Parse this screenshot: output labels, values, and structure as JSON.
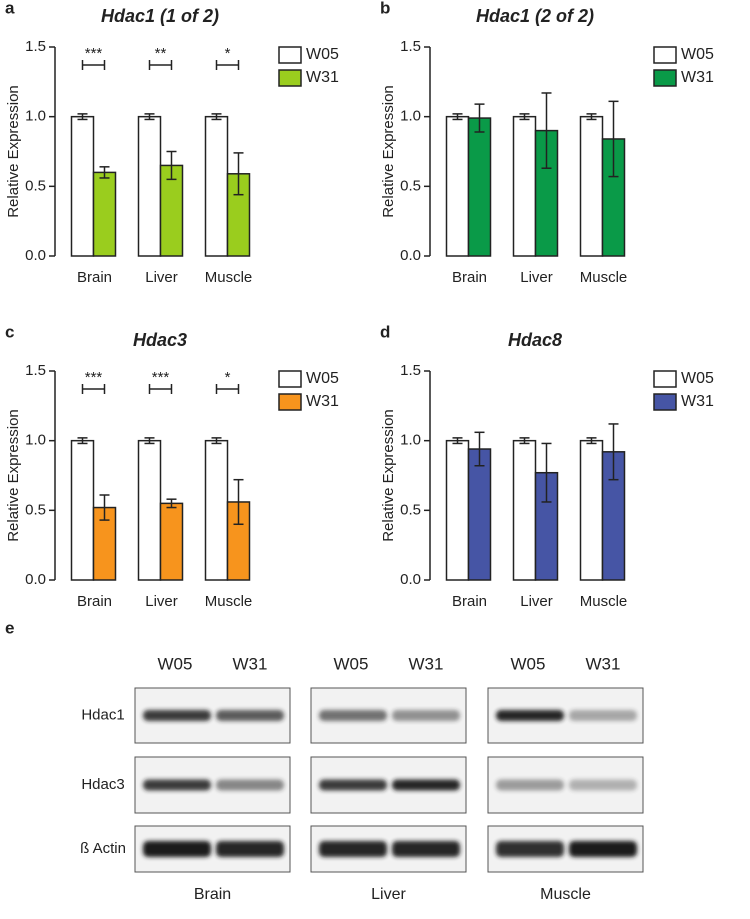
{
  "chart_data": [
    {
      "panel": "a",
      "type": "bar",
      "title": "Hdac1 (1 of 2)",
      "y_label": "Relative Expression",
      "categories": [
        "Brain",
        "Liver",
        "Muscle"
      ],
      "series": [
        {
          "name": "W05",
          "color": "#ffffff",
          "values": [
            1,
            1,
            1
          ],
          "errors": [
            0.02,
            0.02,
            0.02
          ]
        },
        {
          "name": "W31",
          "color": "#9acd1e",
          "values": [
            0.6,
            0.65,
            0.59
          ],
          "errors": [
            0.04,
            0.1,
            0.15
          ]
        }
      ],
      "significance": [
        "***",
        "**",
        "*"
      ],
      "ylim": [
        0,
        1.5
      ],
      "yticks": [
        {
          "value": 0,
          "label": "0.0"
        },
        0.5,
        {
          "value": 1,
          "label": "1.0"
        },
        1.5
      ]
    },
    {
      "panel": "b",
      "type": "bar",
      "title": "Hdac1 (2 of 2)",
      "y_label": "Relative Expression",
      "categories": [
        "Brain",
        "Liver",
        "Muscle"
      ],
      "series": [
        {
          "name": "W05",
          "color": "#ffffff",
          "values": [
            1,
            1,
            1
          ],
          "errors": [
            0.02,
            0.02,
            0.02
          ]
        },
        {
          "name": "W31",
          "color": "#0a9a48",
          "values": [
            0.99,
            0.9,
            0.84
          ],
          "errors": [
            0.1,
            0.27,
            0.27
          ]
        }
      ],
      "ylim": [
        0,
        1.5
      ],
      "yticks": [
        {
          "value": 0,
          "label": "0.0"
        },
        0.5,
        {
          "value": 1,
          "label": "1.0"
        },
        1.5
      ]
    },
    {
      "panel": "c",
      "type": "bar",
      "title": "Hdac3",
      "y_label": "Relative Expression",
      "categories": [
        "Brain",
        "Liver",
        "Muscle"
      ],
      "series": [
        {
          "name": "W05",
          "color": "#ffffff",
          "values": [
            1,
            1,
            1
          ],
          "errors": [
            0.02,
            0.02,
            0.02
          ]
        },
        {
          "name": "W31",
          "color": "#f7941d",
          "values": [
            0.52,
            0.55,
            0.56
          ],
          "errors": [
            0.09,
            0.03,
            0.16
          ]
        }
      ],
      "significance": [
        "***",
        "***",
        "*"
      ],
      "ylim": [
        0,
        1.5
      ],
      "yticks": [
        {
          "value": 0,
          "label": "0.0"
        },
        0.5,
        {
          "value": 1,
          "label": "1.0"
        },
        1.5
      ]
    },
    {
      "panel": "d",
      "type": "bar",
      "title": "Hdac8",
      "y_label": "Relative Expression",
      "categories": [
        "Brain",
        "Liver",
        "Muscle"
      ],
      "series": [
        {
          "name": "W05",
          "color": "#ffffff",
          "values": [
            1,
            1,
            1
          ],
          "errors": [
            0.02,
            0.02,
            0.02
          ]
        },
        {
          "name": "W31",
          "color": "#4655a5",
          "values": [
            0.94,
            0.77,
            0.92
          ],
          "errors": [
            0.12,
            0.21,
            0.2
          ]
        }
      ],
      "ylim": [
        0,
        1.5
      ],
      "yticks": [
        {
          "value": 0,
          "label": "0.0"
        },
        0.5,
        {
          "value": 1,
          "label": "1.0"
        },
        1.5
      ]
    }
  ],
  "blot": {
    "panel": "e",
    "rows": [
      "Hdac1",
      "Hdac3",
      "ß Actin"
    ],
    "groups": [
      {
        "name": "Brain",
        "lanes": [
          "W05",
          "W31"
        ]
      },
      {
        "name": "Liver",
        "lanes": [
          "W05",
          "W31"
        ]
      },
      {
        "name": "Muscle",
        "lanes": [
          "W05",
          "W31"
        ]
      }
    ]
  }
}
